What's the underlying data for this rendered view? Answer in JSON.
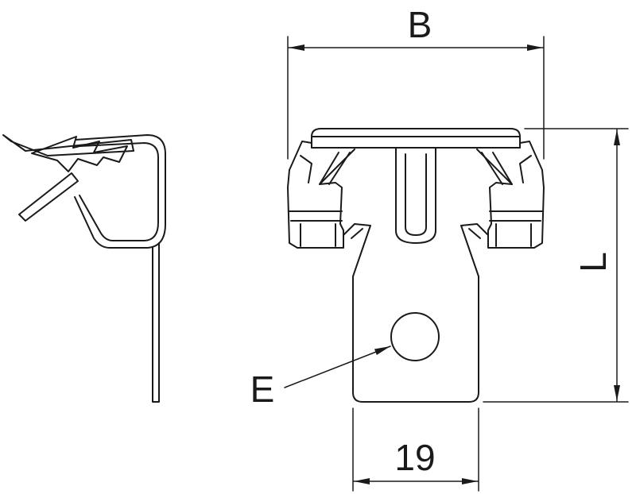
{
  "dimensions": {
    "width_label": "B",
    "height_label": "L",
    "hole_label": "E",
    "tab_width_label": "19"
  },
  "colors": {
    "line": "#1a1a1a",
    "background": "#ffffff"
  }
}
